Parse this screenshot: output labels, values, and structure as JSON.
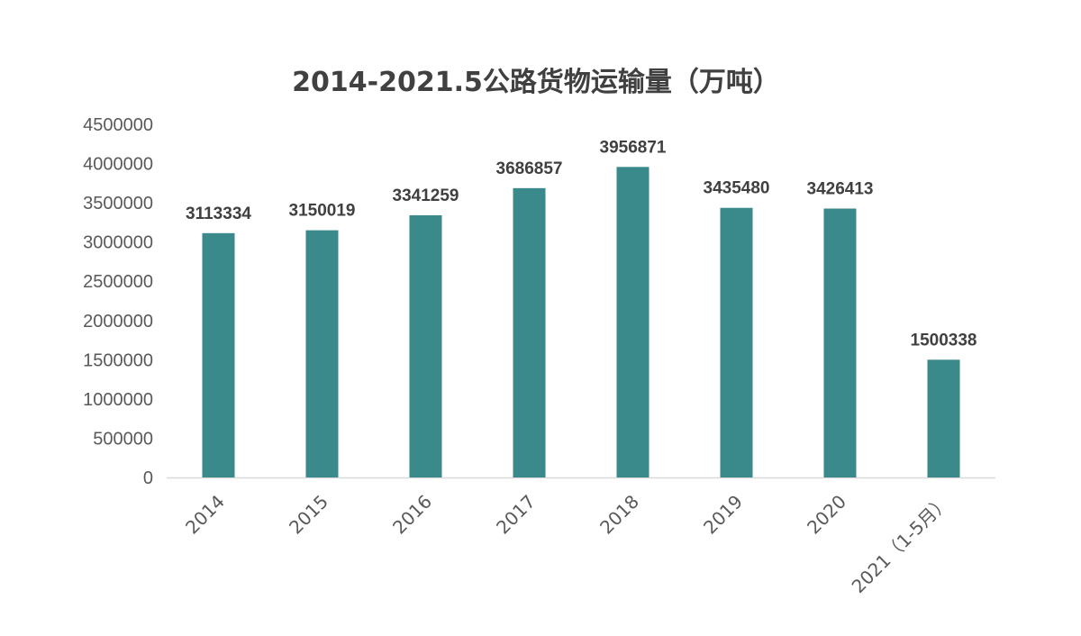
{
  "chart_data": {
    "type": "bar",
    "title": "2014-2021.5公路货物运输量（万吨）",
    "categories": [
      "2014",
      "2015",
      "2016",
      "2017",
      "2018",
      "2019",
      "2020",
      "2021（1-5月）"
    ],
    "series": [
      {
        "values": [
          3113334,
          3150019,
          3341259,
          3686857,
          3956871,
          3435480,
          3426413,
          1500338
        ]
      }
    ],
    "data_labels": [
      "3113334",
      "3150019",
      "3341259",
      "3686857",
      "3956871",
      "3435480",
      "3426413",
      "1500338"
    ],
    "yticks": [
      "0",
      "500000",
      "1000000",
      "1500000",
      "2000000",
      "2500000",
      "3000000",
      "3500000",
      "4000000",
      "4500000"
    ],
    "ylim": [
      0,
      4500000
    ],
    "grid": false,
    "legend": "none",
    "bar_color": "#3a8a8c",
    "axis_color": "#d9d9d9"
  }
}
